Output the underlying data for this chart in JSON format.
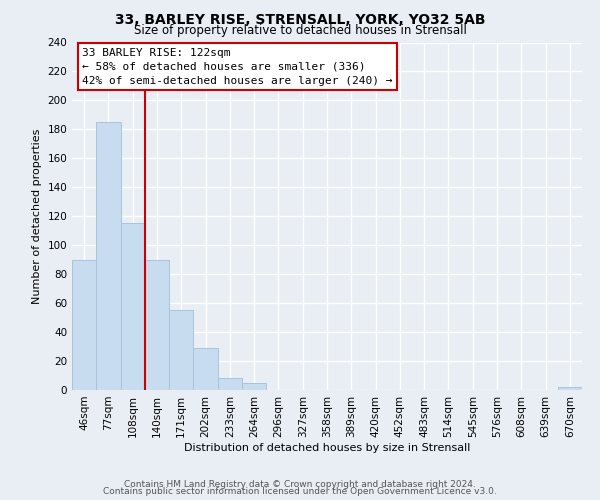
{
  "title": "33, BARLEY RISE, STRENSALL, YORK, YO32 5AB",
  "subtitle": "Size of property relative to detached houses in Strensall",
  "xlabel": "Distribution of detached houses by size in Strensall",
  "ylabel": "Number of detached properties",
  "bar_labels": [
    "46sqm",
    "77sqm",
    "108sqm",
    "140sqm",
    "171sqm",
    "202sqm",
    "233sqm",
    "264sqm",
    "296sqm",
    "327sqm",
    "358sqm",
    "389sqm",
    "420sqm",
    "452sqm",
    "483sqm",
    "514sqm",
    "545sqm",
    "576sqm",
    "608sqm",
    "639sqm",
    "670sqm"
  ],
  "bar_values": [
    90,
    185,
    115,
    90,
    55,
    29,
    8,
    5,
    0,
    0,
    0,
    0,
    0,
    0,
    0,
    0,
    0,
    0,
    0,
    0,
    2
  ],
  "bar_color": "#c8dcf0",
  "bar_edge_color": "#a8c4dc",
  "vline_x_idx": 2,
  "vline_color": "#cc0000",
  "ylim": [
    0,
    240
  ],
  "yticks": [
    0,
    20,
    40,
    60,
    80,
    100,
    120,
    140,
    160,
    180,
    200,
    220,
    240
  ],
  "annotation_title": "33 BARLEY RISE: 122sqm",
  "annotation_line1": "← 58% of detached houses are smaller (336)",
  "annotation_line2": "42% of semi-detached houses are larger (240) →",
  "annotation_box_color": "#ffffff",
  "annotation_box_edge": "#cc0000",
  "footer1": "Contains HM Land Registry data © Crown copyright and database right 2024.",
  "footer2": "Contains public sector information licensed under the Open Government Licence v3.0.",
  "background_color": "#e8eef4",
  "grid_color": "#ffffff",
  "title_fontsize": 10,
  "subtitle_fontsize": 8.5,
  "xlabel_fontsize": 8,
  "ylabel_fontsize": 8,
  "tick_fontsize": 7.5,
  "footer_fontsize": 6.5,
  "annot_fontsize": 8
}
